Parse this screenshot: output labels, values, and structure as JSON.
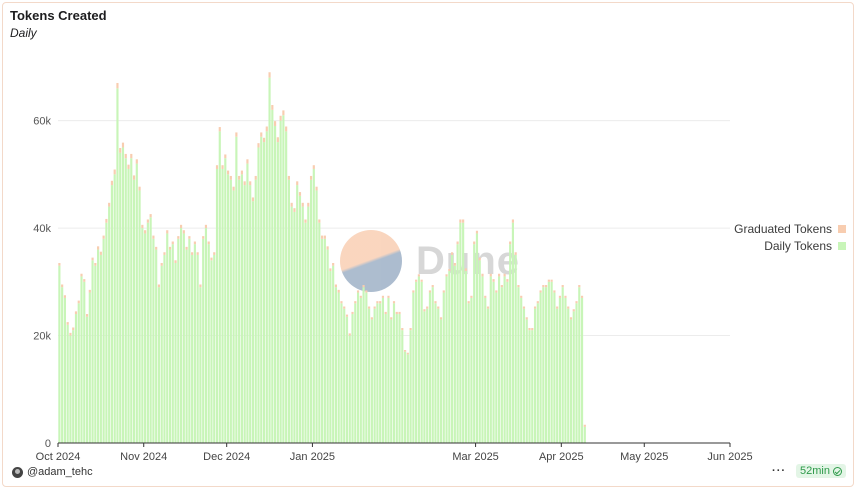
{
  "header": {
    "title": "Tokens Created",
    "subtitle": "Daily"
  },
  "legend": [
    {
      "label": "Graduated Tokens",
      "color": "#f8cdb0"
    },
    {
      "label": "Daily Tokens",
      "color": "#c8f5b8"
    }
  ],
  "footer": {
    "author": "@adam_tehc",
    "refresh": "52min",
    "more_icon": "ellipsis-icon"
  },
  "watermark": {
    "text": "Dune"
  },
  "chart_data": {
    "type": "bar",
    "stacked": true,
    "title": "Tokens Created",
    "subtitle": "Daily",
    "xlabel": "",
    "ylabel": "",
    "ylim": [
      0,
      75000
    ],
    "y_ticks": [
      0,
      20000,
      40000,
      60000
    ],
    "y_tick_labels": [
      "0",
      "20k",
      "40k",
      "60k"
    ],
    "x_tick_labels": [
      "Oct 2024",
      "Nov 2024",
      "Dec 2024",
      "Jan 2025",
      "Mar 2025",
      "Apr 2025",
      "May 2025",
      "Jun 2025"
    ],
    "x_tick_dates": [
      "2024-10-01",
      "2024-11-01",
      "2024-12-01",
      "2025-01-01",
      "2025-03-01",
      "2025-04-01",
      "2025-05-01",
      "2025-06-01"
    ],
    "start_date": "2024-10-01",
    "grid": true,
    "legend_position": "right",
    "series": [
      {
        "name": "Daily Tokens",
        "color": "#c8f5b8",
        "values": [
          33000,
          29000,
          27000,
          22000,
          20000,
          21000,
          24000,
          26000,
          31000,
          30000,
          23500,
          28000,
          34000,
          33000,
          36000,
          35000,
          38000,
          41000,
          44000,
          48000,
          50000,
          66000,
          54000,
          55000,
          53000,
          51000,
          53000,
          49000,
          52000,
          47000,
          40000,
          39000,
          41000,
          42000,
          38000,
          36000,
          29000,
          33000,
          35000,
          39000,
          36000,
          37000,
          33500,
          38000,
          40000,
          39000,
          36000,
          38000,
          35000,
          37000,
          35000,
          29000,
          38000,
          40000,
          37000,
          34000,
          35000,
          51000,
          58000,
          51000,
          53000,
          50000,
          49000,
          47000,
          57000,
          49000,
          50000,
          48000,
          52000,
          48000,
          45000,
          49000,
          55000,
          57000,
          56000,
          58000,
          68000,
          62000,
          59000,
          56000,
          60000,
          61000,
          58000,
          49000,
          44000,
          43000,
          48000,
          46000,
          44000,
          41000,
          44000,
          49000,
          51000,
          47000,
          41000,
          38000,
          38000,
          36000,
          32000,
          33000,
          29000,
          28000,
          26000,
          25000,
          23500,
          20000,
          24000,
          26000,
          28000,
          27000,
          29000,
          28000,
          25000,
          23000,
          25000,
          26000,
          26000,
          27000,
          24000,
          27000,
          23000,
          26000,
          24000,
          24000,
          21000,
          17000,
          16500,
          21000,
          28000,
          30000,
          31000,
          30000,
          24500,
          25000,
          28000,
          29000,
          26000,
          25000,
          23000,
          28000,
          31000,
          32000,
          35000,
          33000,
          37000,
          41000,
          41000,
          32000,
          26000,
          27000,
          37000,
          39000,
          34000,
          31000,
          27000,
          25000,
          31000,
          30000,
          28000,
          31000,
          29000,
          31000,
          30000,
          37000,
          41000,
          35000,
          29000,
          27000,
          25000,
          23000,
          21000,
          21000,
          25000,
          26000,
          28000,
          29000,
          29000,
          30000,
          30000,
          28000,
          25000,
          27000,
          29000,
          27000,
          25000,
          23000,
          24500,
          26000,
          29000,
          27000,
          3000
        ]
      },
      {
        "name": "Graduated Tokens",
        "color": "#f8cdb0",
        "values": [
          500,
          500,
          500,
          500,
          500,
          500,
          500,
          500,
          500,
          500,
          500,
          500,
          500,
          500,
          600,
          600,
          600,
          700,
          700,
          800,
          900,
          1000,
          900,
          900,
          800,
          800,
          800,
          800,
          800,
          700,
          600,
          600,
          600,
          600,
          600,
          500,
          500,
          500,
          500,
          600,
          500,
          500,
          500,
          500,
          600,
          600,
          500,
          500,
          500,
          500,
          500,
          500,
          500,
          600,
          500,
          500,
          500,
          700,
          800,
          700,
          700,
          700,
          700,
          700,
          800,
          700,
          700,
          700,
          800,
          700,
          700,
          700,
          800,
          800,
          800,
          900,
          1000,
          900,
          900,
          900,
          900,
          900,
          900,
          700,
          700,
          700,
          700,
          700,
          700,
          600,
          700,
          700,
          700,
          700,
          600,
          600,
          600,
          600,
          500,
          500,
          500,
          500,
          400,
          400,
          400,
          400,
          400,
          400,
          400,
          400,
          400,
          400,
          400,
          400,
          400,
          400,
          400,
          400,
          400,
          400,
          400,
          400,
          400,
          400,
          400,
          300,
          300,
          400,
          400,
          400,
          400,
          400,
          400,
          400,
          400,
          400,
          400,
          400,
          400,
          400,
          400,
          400,
          500,
          500,
          500,
          600,
          600,
          500,
          400,
          400,
          500,
          500,
          500,
          500,
          400,
          400,
          500,
          500,
          400,
          500,
          400,
          500,
          500,
          500,
          600,
          500,
          400,
          400,
          400,
          400,
          400,
          400,
          400,
          400,
          400,
          400,
          400,
          400,
          400,
          400,
          400,
          400,
          400,
          400,
          400,
          400,
          400,
          400,
          400,
          400,
          400,
          400,
          100
        ]
      }
    ]
  }
}
